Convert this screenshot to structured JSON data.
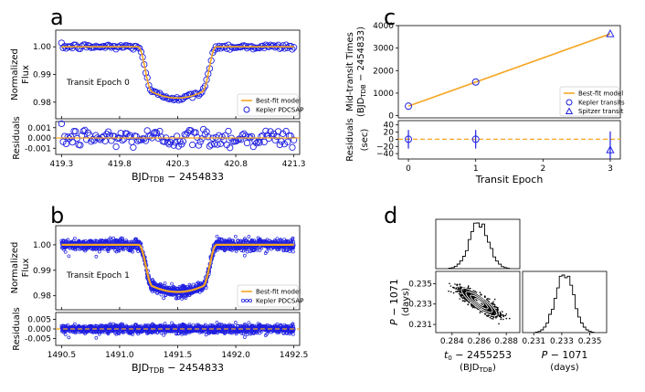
{
  "chart_data": [
    {
      "panel": "a",
      "type": "scatter",
      "title": "",
      "annotation": "Transit Epoch 0",
      "xlabel": "BJD",
      "xlabel_sub": "TDB",
      "xlabel_suffix": " − 2454833",
      "ylabel_top": [
        "Normalized",
        "Flux"
      ],
      "ylabel_bottom": "Residuals",
      "xlim": [
        419.25,
        421.35
      ],
      "ylim": [
        0.974,
        1.006
      ],
      "res_ylim": [
        -0.0016,
        0.0016
      ],
      "x_ticks": [
        "419.3",
        "419.8",
        "420.3",
        "420.8",
        "421.3"
      ],
      "x_tick_values": [
        419.3,
        419.8,
        420.3,
        420.8,
        421.3
      ],
      "y_ticks": [
        "1.00",
        "0.99",
        "0.98"
      ],
      "y_tick_values": [
        1.0,
        0.99,
        0.98
      ],
      "res_ticks": [
        "0.001",
        "0.000",
        "-0.001"
      ],
      "res_tick_values": [
        0.001,
        0.0,
        -0.001
      ],
      "model": {
        "t0": 420.295,
        "t14": 0.67,
        "ingress": 0.12,
        "depth": 0.0185,
        "out_of_transit": 1.0,
        "range": [
          419.3,
          421.3
        ]
      },
      "data_count": 150,
      "noise": 0.0005,
      "legend": [
        "Best-fit model",
        "Kepler PDCSAP"
      ]
    },
    {
      "panel": "b",
      "type": "scatter",
      "title": "",
      "annotation": "Transit Epoch 1",
      "xlabel": "BJD",
      "xlabel_sub": "TDB",
      "xlabel_suffix": " − 2454833",
      "ylabel_top": [
        "Normalized",
        "Flux"
      ],
      "ylabel_bottom": "Residuals",
      "xlim": [
        1490.45,
        1492.55
      ],
      "ylim": [
        0.9745,
        1.0075
      ],
      "res_ylim": [
        -0.0085,
        0.0085
      ],
      "x_ticks": [
        "1490.5",
        "1491.0",
        "1491.5",
        "1492.0",
        "1492.5"
      ],
      "x_tick_values": [
        1490.5,
        1491.0,
        1491.5,
        1492.0,
        1492.5
      ],
      "y_ticks": [
        "1.00",
        "0.99",
        "0.98"
      ],
      "y_tick_values": [
        1.0,
        0.99,
        0.98
      ],
      "res_ticks": [
        "0.005",
        "0.000",
        "-0.005"
      ],
      "res_tick_values": [
        0.005,
        0.0,
        -0.005
      ],
      "model": {
        "t0": 1491.5,
        "t14": 0.67,
        "ingress": 0.12,
        "depth": 0.0185,
        "out_of_transit": 1.0,
        "range": [
          1490.5,
          1492.5
        ]
      },
      "data_count": 1400,
      "noise": 0.0011,
      "legend": [
        "Best-fit model",
        "Kepler PDCSAP"
      ]
    },
    {
      "panel": "c",
      "type": "line",
      "title": "",
      "xlabel": "Transit Epoch",
      "ylabel_top": [
        "Mid-transit Times",
        "(BJD",
        "TDB",
        " − 2454833)"
      ],
      "ylabel_bottom": [
        "Residuals",
        "(sec)"
      ],
      "xlim": [
        -0.15,
        3.15
      ],
      "ylim": [
        -100,
        4000
      ],
      "res_ylim": [
        -55,
        52
      ],
      "x_ticks": [
        "0",
        "1",
        "2",
        "3"
      ],
      "x_tick_values": [
        0,
        1,
        2,
        3
      ],
      "y_ticks": [
        "0",
        "1000",
        "2000",
        "3000",
        "4000"
      ],
      "y_tick_values": [
        0,
        1000,
        2000,
        3000,
        4000
      ],
      "res_ticks": [
        "40",
        "20",
        "0",
        "−20",
        "−40"
      ],
      "res_tick_values": [
        40,
        20,
        0,
        -20,
        -40
      ],
      "fit_line": {
        "x": [
          0,
          3
        ],
        "y": [
          420.3,
          3632.0
        ]
      },
      "kepler_transits": {
        "x": [
          0,
          1
        ],
        "y": [
          420.3,
          1491.5
        ],
        "residual": [
          0,
          0
        ],
        "error": [
          26,
          26
        ]
      },
      "spitzer_transit": {
        "x": [
          3
        ],
        "y": [
          3632.0
        ],
        "residual": [
          -30
        ],
        "error": [
          52
        ]
      },
      "legend": [
        "Best-fit model",
        "Kepler transits",
        "Spitzer transit"
      ]
    },
    {
      "panel": "d",
      "type": "histogram",
      "title": "",
      "corner": {
        "t0_label": [
          "t",
          "0",
          " − 2455253",
          "(BJD",
          "TDB",
          ")"
        ],
        "p_label": [
          "P",
          " − 1071",
          "(days)"
        ],
        "t0_ticks": [
          "0.284",
          "0.286",
          "0.288"
        ],
        "t0_tick_values": [
          0.284,
          0.286,
          0.288
        ],
        "p_ticks": [
          "0.231",
          "0.233",
          "0.235"
        ],
        "p_tick_values": [
          0.231,
          0.233,
          0.235
        ],
        "t0_range": [
          0.2828,
          0.289
        ],
        "p_range": [
          0.2302,
          0.2362
        ],
        "t0_mean": 0.286,
        "t0_sigma": 0.0007,
        "p_mean": 0.2332,
        "p_sigma": 0.00065,
        "correlation": -0.85
      }
    }
  ],
  "colors": {
    "model": "#f5a623",
    "data": "#1f1fe0",
    "zero": "#f5a623"
  }
}
